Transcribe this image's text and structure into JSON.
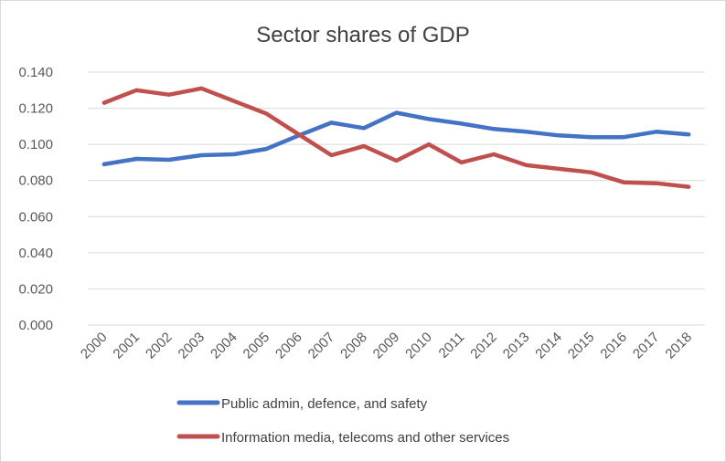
{
  "chart_data": {
    "type": "line",
    "title": "Sector shares of GDP",
    "xlabel": "",
    "ylabel": "",
    "ylim": [
      0,
      0.14
    ],
    "ytick_step": 0.02,
    "ytick_labels": [
      "0.000",
      "0.020",
      "0.040",
      "0.060",
      "0.080",
      "0.100",
      "0.120",
      "0.140"
    ],
    "categories": [
      "2000",
      "2001",
      "2002",
      "2003",
      "2004",
      "2005",
      "2006",
      "2007",
      "2008",
      "2009",
      "2010",
      "2011",
      "2012",
      "2013",
      "2014",
      "2015",
      "2016",
      "2017",
      "2018"
    ],
    "series": [
      {
        "name": "Public admin, defence, and safety",
        "color": "#4472c4",
        "values": [
          0.089,
          0.092,
          0.0915,
          0.094,
          0.0945,
          0.0975,
          0.105,
          0.112,
          0.109,
          0.1175,
          0.114,
          0.1115,
          0.1085,
          0.107,
          0.105,
          0.104,
          0.104,
          0.107,
          0.1055
        ]
      },
      {
        "name": "Information media, telecoms and other services",
        "color": "#c0504d",
        "values": [
          0.123,
          0.13,
          0.1275,
          0.131,
          0.124,
          0.117,
          0.1055,
          0.094,
          0.099,
          0.091,
          0.1,
          0.09,
          0.0945,
          0.0885,
          0.0865,
          0.0845,
          0.079,
          0.0785,
          0.0765
        ]
      }
    ],
    "legend_position": "bottom"
  }
}
